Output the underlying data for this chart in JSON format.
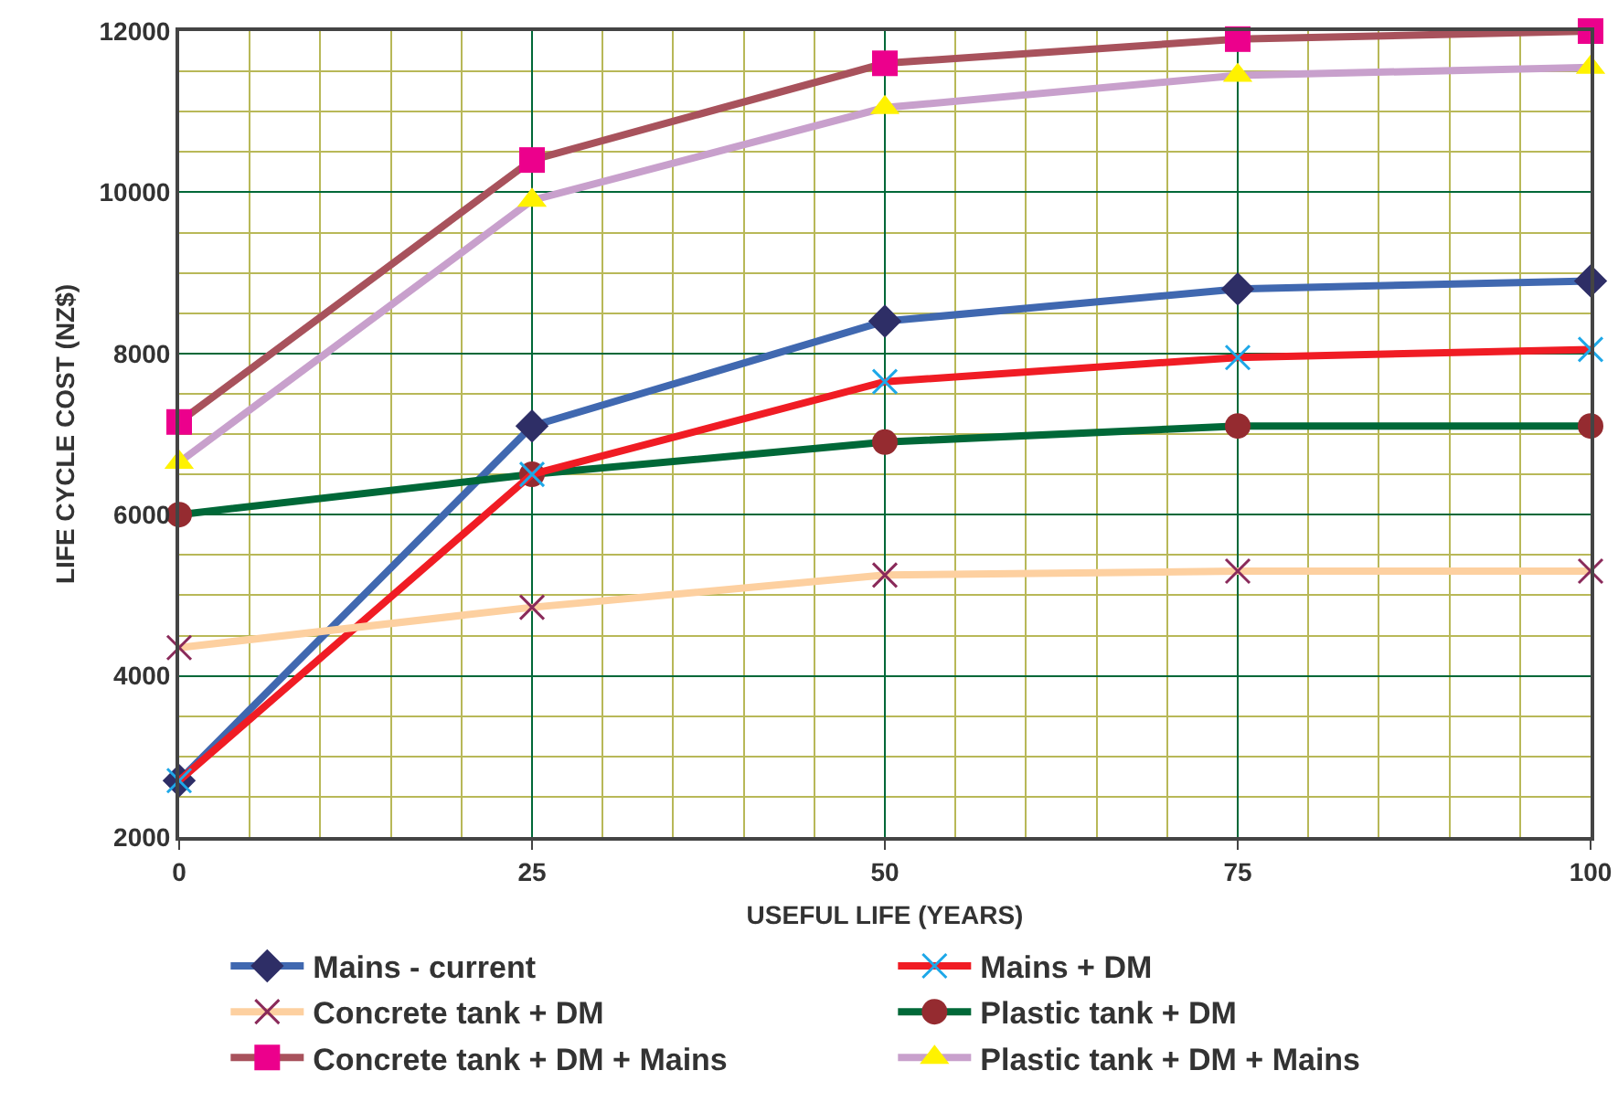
{
  "chart_data": {
    "type": "line",
    "xlabel": "USEFUL LIFE (YEARS)",
    "ylabel": "LIFE CYCLE COST (NZ$)",
    "x": [
      0,
      25,
      50,
      75,
      100
    ],
    "series": [
      {
        "name": "Mains - current",
        "color": "#4068b0",
        "colors": [
          "#2e2e66",
          "#2e2e66",
          "#2e2e66",
          "#2e2e66",
          "#2e2e66"
        ],
        "marker": "diamond",
        "values": [
          2700,
          7100,
          8400,
          8800,
          8900
        ]
      },
      {
        "name": "Mains + DM",
        "color": "#f01c24",
        "colors": [
          "#1ea8e8",
          "#1ea8e8",
          "#1ea8e8",
          "#1ea8e8",
          "#1ea8e8"
        ],
        "marker": "cross",
        "values": [
          2700,
          6500,
          7650,
          7950,
          8050
        ]
      },
      {
        "name": "Concrete tank + DM",
        "color": "#fdd0a0",
        "colors": [
          "#8a2a5a",
          "#8a2a5a",
          "#8a2a5a",
          "#8a2a5a",
          "#8a2a5a"
        ],
        "marker": "cross",
        "values": [
          4350,
          4850,
          5250,
          5300,
          5300
        ]
      },
      {
        "name": "Plastic tank + DM",
        "color": "#006838",
        "colors": [
          "#952b30",
          "#952b30",
          "#952b30",
          "#952b30",
          "#952b30"
        ],
        "marker": "circle",
        "values": [
          6000,
          6500,
          6900,
          7100,
          7100
        ]
      },
      {
        "name": "Concrete tank + DM + Mains",
        "color": "#a8525c",
        "colors": [
          "#ec008c",
          "#ec008c",
          "#ec008c",
          "#ec008c",
          "#ec008c"
        ],
        "marker": "square",
        "values": [
          7150,
          10400,
          11600,
          11900,
          12000
        ]
      },
      {
        "name": "Plastic tank + DM + Mains",
        "color": "#c8a0cc",
        "colors": [
          "#fff200",
          "#fff200",
          "#fff200",
          "#fff200",
          "#fff200"
        ],
        "marker": "triangle",
        "values": [
          6650,
          9900,
          11050,
          11450,
          11550
        ]
      }
    ],
    "xlim": [
      0,
      100
    ],
    "xticks": [
      0,
      {
        "value": 5,
        "label": null
      },
      {
        "value": 10,
        "label": null
      },
      {
        "value": 15,
        "label": null
      },
      {
        "value": 20,
        "label": null
      },
      25,
      {
        "value": 30,
        "label": null
      },
      {
        "value": 35,
        "label": null
      },
      {
        "value": 40,
        "label": null
      },
      {
        "value": 45,
        "label": null
      },
      50,
      {
        "value": 55,
        "label": null
      },
      {
        "value": 60,
        "label": null
      },
      {
        "value": 65,
        "label": null
      },
      {
        "value": 70,
        "label": null
      },
      75,
      {
        "value": 80,
        "label": null
      },
      {
        "value": 85,
        "label": null
      },
      {
        "value": 90,
        "label": null
      },
      {
        "value": 95,
        "label": null
      },
      100
    ],
    "ylim": [
      2000,
      12000
    ],
    "yticks": [
      2000,
      {
        "value": 2500,
        "label": null
      },
      {
        "value": 3000,
        "label": null
      },
      {
        "value": 3500,
        "label": null
      },
      4000,
      {
        "value": 4500,
        "label": null
      },
      {
        "value": 5000,
        "label": null
      },
      {
        "value": 5500,
        "label": null
      },
      6000,
      {
        "value": 6500,
        "label": null
      },
      {
        "value": 7000,
        "label": null
      },
      {
        "value": 7500,
        "label": null
      },
      8000,
      {
        "value": 8500,
        "label": null
      },
      {
        "value": 9000,
        "label": null
      },
      {
        "value": 9500,
        "label": null
      },
      10000,
      {
        "value": 10500,
        "label": null
      },
      {
        "value": 11000,
        "label": null
      },
      {
        "value": 11500,
        "label": null
      },
      12000
    ],
    "grid": true,
    "legend": "bottom",
    "line_style": "solid"
  }
}
